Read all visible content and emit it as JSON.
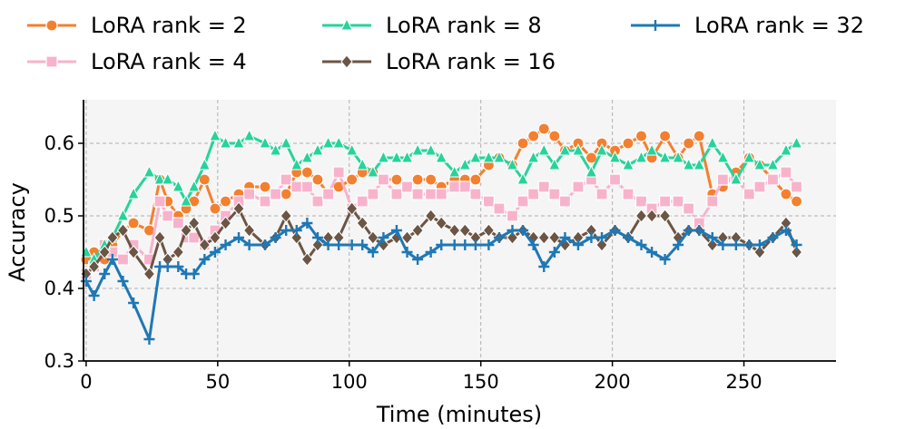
{
  "chart_data": {
    "type": "line",
    "title": "",
    "xlabel": "Time (minutes)",
    "ylabel": "Accuracy",
    "xlim": [
      -1,
      285
    ],
    "ylim": [
      0.3,
      0.66
    ],
    "xticks": [
      0,
      50,
      100,
      150,
      200,
      250
    ],
    "yticks": [
      0.3,
      0.4,
      0.5,
      0.6
    ],
    "ytick_labels": [
      "0.3",
      "0.4",
      "0.5",
      "0.6"
    ],
    "grid": true,
    "legend_position": "top",
    "series": [
      {
        "name": "LoRA rank = 2",
        "color": "#f28030",
        "marker": "circle",
        "x": [
          0,
          3,
          7,
          10,
          14,
          18,
          24,
          28,
          31,
          35,
          38,
          41,
          45,
          49,
          53,
          58,
          62,
          68,
          72,
          76,
          80,
          84,
          88,
          92,
          96,
          101,
          105,
          109,
          113,
          118,
          122,
          126,
          131,
          135,
          140,
          144,
          148,
          153,
          157,
          162,
          166,
          170,
          174,
          178,
          182,
          187,
          192,
          196,
          201,
          206,
          211,
          215,
          220,
          225,
          229,
          233,
          238,
          242,
          247,
          252,
          256,
          261,
          266,
          270
        ],
        "y": [
          0.44,
          0.45,
          0.44,
          0.46,
          0.48,
          0.49,
          0.48,
          0.55,
          0.52,
          0.5,
          0.51,
          0.52,
          0.55,
          0.51,
          0.52,
          0.53,
          0.54,
          0.54,
          0.53,
          0.53,
          0.56,
          0.56,
          0.55,
          0.53,
          0.54,
          0.55,
          0.56,
          0.56,
          0.55,
          0.55,
          0.54,
          0.55,
          0.55,
          0.54,
          0.55,
          0.55,
          0.55,
          0.57,
          0.58,
          0.57,
          0.6,
          0.61,
          0.62,
          0.61,
          0.59,
          0.6,
          0.58,
          0.6,
          0.59,
          0.6,
          0.61,
          0.58,
          0.61,
          0.58,
          0.6,
          0.61,
          0.53,
          0.54,
          0.56,
          0.58,
          0.57,
          0.55,
          0.53,
          0.52
        ]
      },
      {
        "name": "LoRA rank = 4",
        "color": "#f8b3cc",
        "marker": "square",
        "x": [
          0,
          3,
          7,
          10,
          14,
          18,
          24,
          28,
          31,
          35,
          38,
          41,
          45,
          49,
          53,
          58,
          62,
          68,
          72,
          76,
          80,
          84,
          88,
          92,
          96,
          101,
          105,
          109,
          113,
          118,
          122,
          126,
          131,
          135,
          140,
          144,
          148,
          153,
          157,
          162,
          166,
          170,
          174,
          178,
          182,
          187,
          192,
          196,
          201,
          206,
          211,
          215,
          220,
          225,
          229,
          233,
          238,
          242,
          247,
          252,
          256,
          261,
          266,
          270
        ],
        "y": [
          0.42,
          0.43,
          0.46,
          0.45,
          0.44,
          0.46,
          0.44,
          0.52,
          0.5,
          0.49,
          0.47,
          0.47,
          0.46,
          0.48,
          0.5,
          0.52,
          0.53,
          0.52,
          0.53,
          0.55,
          0.54,
          0.54,
          0.52,
          0.53,
          0.56,
          0.51,
          0.52,
          0.53,
          0.55,
          0.53,
          0.54,
          0.53,
          0.53,
          0.53,
          0.54,
          0.54,
          0.53,
          0.52,
          0.51,
          0.5,
          0.52,
          0.53,
          0.54,
          0.53,
          0.52,
          0.54,
          0.55,
          0.53,
          0.55,
          0.53,
          0.52,
          0.51,
          0.52,
          0.52,
          0.51,
          0.49,
          0.52,
          0.55,
          0.55,
          0.53,
          0.54,
          0.55,
          0.56,
          0.54
        ]
      },
      {
        "name": "LoRA rank = 8",
        "color": "#27d39b",
        "marker": "triangle",
        "x": [
          0,
          3,
          7,
          10,
          14,
          18,
          24,
          28,
          31,
          35,
          38,
          41,
          45,
          49,
          53,
          58,
          62,
          68,
          72,
          76,
          80,
          84,
          88,
          92,
          96,
          101,
          105,
          109,
          113,
          118,
          122,
          126,
          131,
          135,
          140,
          144,
          148,
          153,
          157,
          162,
          166,
          170,
          174,
          178,
          182,
          187,
          192,
          196,
          201,
          206,
          211,
          215,
          220,
          225,
          229,
          233,
          238,
          242,
          247,
          252,
          256,
          261,
          266,
          270
        ],
        "y": [
          0.45,
          0.44,
          0.46,
          0.47,
          0.5,
          0.53,
          0.56,
          0.55,
          0.55,
          0.54,
          0.52,
          0.54,
          0.57,
          0.61,
          0.6,
          0.6,
          0.61,
          0.6,
          0.59,
          0.6,
          0.57,
          0.58,
          0.59,
          0.6,
          0.6,
          0.59,
          0.57,
          0.56,
          0.58,
          0.58,
          0.58,
          0.59,
          0.59,
          0.58,
          0.56,
          0.57,
          0.58,
          0.58,
          0.58,
          0.57,
          0.55,
          0.58,
          0.59,
          0.57,
          0.59,
          0.59,
          0.56,
          0.59,
          0.58,
          0.57,
          0.58,
          0.59,
          0.58,
          0.58,
          0.57,
          0.57,
          0.6,
          0.58,
          0.55,
          0.58,
          0.57,
          0.57,
          0.59,
          0.6
        ]
      },
      {
        "name": "LoRA rank = 16",
        "color": "#6b5544",
        "marker": "diamond",
        "x": [
          0,
          3,
          7,
          10,
          14,
          18,
          24,
          28,
          31,
          35,
          38,
          41,
          45,
          49,
          53,
          58,
          62,
          68,
          72,
          76,
          80,
          84,
          88,
          92,
          96,
          101,
          105,
          109,
          113,
          118,
          122,
          126,
          131,
          135,
          140,
          144,
          148,
          153,
          157,
          162,
          166,
          170,
          174,
          178,
          182,
          187,
          192,
          196,
          201,
          206,
          211,
          215,
          220,
          225,
          229,
          233,
          238,
          242,
          247,
          252,
          256,
          261,
          266,
          270
        ],
        "y": [
          0.42,
          0.43,
          0.45,
          0.47,
          0.48,
          0.45,
          0.42,
          0.47,
          0.44,
          0.45,
          0.48,
          0.49,
          0.46,
          0.47,
          0.49,
          0.51,
          0.48,
          0.46,
          0.47,
          0.5,
          0.47,
          0.44,
          0.46,
          0.47,
          0.47,
          0.51,
          0.49,
          0.47,
          0.46,
          0.47,
          0.47,
          0.48,
          0.5,
          0.49,
          0.48,
          0.48,
          0.47,
          0.48,
          0.47,
          0.47,
          0.48,
          0.47,
          0.47,
          0.47,
          0.46,
          0.47,
          0.48,
          0.46,
          0.48,
          0.47,
          0.5,
          0.5,
          0.5,
          0.47,
          0.48,
          0.48,
          0.46,
          0.47,
          0.47,
          0.46,
          0.45,
          0.47,
          0.49,
          0.45
        ]
      },
      {
        "name": "LoRA rank = 32",
        "color": "#1f78b4",
        "marker": "plus",
        "x": [
          0,
          3,
          7,
          10,
          14,
          18,
          24,
          28,
          31,
          35,
          38,
          41,
          45,
          49,
          53,
          58,
          62,
          68,
          72,
          76,
          80,
          84,
          88,
          92,
          96,
          101,
          105,
          109,
          113,
          118,
          122,
          126,
          131,
          135,
          140,
          144,
          148,
          153,
          157,
          162,
          166,
          170,
          174,
          178,
          182,
          187,
          192,
          196,
          201,
          206,
          211,
          215,
          220,
          225,
          229,
          233,
          238,
          242,
          247,
          252,
          256,
          261,
          266,
          270
        ],
        "y": [
          0.41,
          0.39,
          0.42,
          0.44,
          0.41,
          0.38,
          0.33,
          0.43,
          0.43,
          0.43,
          0.42,
          0.42,
          0.44,
          0.45,
          0.46,
          0.47,
          0.46,
          0.46,
          0.47,
          0.48,
          0.48,
          0.49,
          0.47,
          0.46,
          0.46,
          0.46,
          0.46,
          0.45,
          0.47,
          0.48,
          0.45,
          0.44,
          0.45,
          0.46,
          0.46,
          0.46,
          0.46,
          0.46,
          0.47,
          0.48,
          0.48,
          0.46,
          0.43,
          0.45,
          0.47,
          0.46,
          0.47,
          0.47,
          0.48,
          0.47,
          0.46,
          0.45,
          0.44,
          0.46,
          0.48,
          0.48,
          0.47,
          0.46,
          0.46,
          0.46,
          0.46,
          0.47,
          0.48,
          0.46
        ]
      }
    ]
  }
}
